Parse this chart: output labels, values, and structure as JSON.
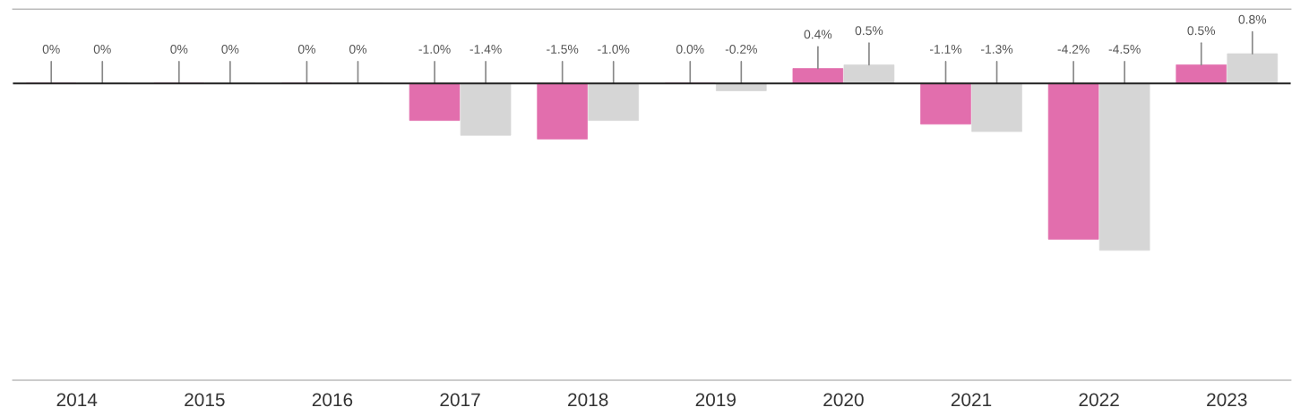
{
  "chart_data": {
    "type": "bar",
    "categories": [
      "2014",
      "2015",
      "2016",
      "2017",
      "2018",
      "2019",
      "2020",
      "2021",
      "2022",
      "2023"
    ],
    "series": [
      {
        "color": "#e26ead",
        "values": [
          0,
          0,
          0,
          -1.0,
          -1.5,
          0.0,
          0.4,
          -1.1,
          -4.2,
          0.5
        ],
        "value_labels": [
          "0%",
          "0%",
          "0%",
          "-1.0%",
          "-1.5%",
          "0.0%",
          "0.4%",
          "-1.1%",
          "-4.2%",
          "0.5%"
        ]
      },
      {
        "color": "#d6d6d6",
        "values": [
          0,
          0,
          0,
          -1.4,
          -1.0,
          -0.2,
          0.5,
          -1.3,
          -4.5,
          0.8
        ],
        "value_labels": [
          "0%",
          "0%",
          "0%",
          "-1.4%",
          "-1.0%",
          "-0.2%",
          "0.5%",
          "-1.3%",
          "-4.5%",
          "0.8%"
        ]
      }
    ],
    "ylim": [
      -8,
      2
    ],
    "tick_labels": "x",
    "grid": false,
    "legend": false
  }
}
